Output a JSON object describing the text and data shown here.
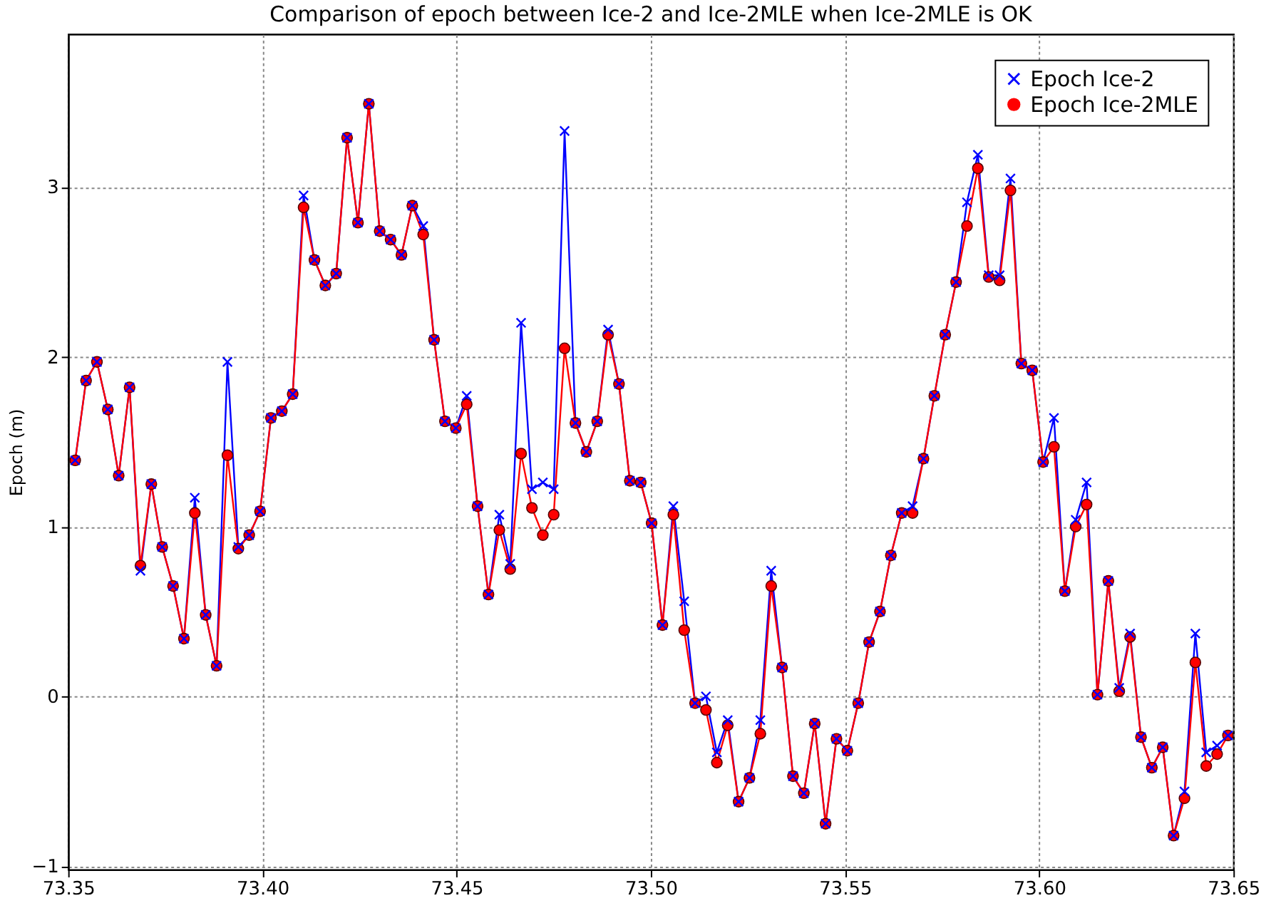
{
  "chart_data": {
    "type": "line",
    "title": "Comparison of epoch between Ice-2 and Ice-2MLE when Ice-2MLE is OK",
    "ylabel": "Epoch (m)",
    "x": [
      73.3518,
      73.3546,
      73.3574,
      73.3602,
      73.363,
      73.3658,
      73.3686,
      73.3714,
      73.3742,
      73.377,
      73.3798,
      73.3826,
      73.3854,
      73.3882,
      73.391,
      73.3938,
      73.3966,
      73.3994,
      73.4022,
      73.405,
      73.4078,
      73.4106,
      73.4134,
      73.4162,
      73.419,
      73.4218,
      73.4246,
      73.4274,
      73.4302,
      73.433,
      73.4358,
      73.4386,
      73.4414,
      73.4442,
      73.447,
      73.4498,
      73.4526,
      73.4554,
      73.4582,
      73.461,
      73.4638,
      73.4666,
      73.4694,
      73.4722,
      73.475,
      73.4778,
      73.4806,
      73.4834,
      73.4862,
      73.489,
      73.4918,
      73.4946,
      73.4974,
      73.5002,
      73.503,
      73.5058,
      73.5086,
      73.5114,
      73.5142,
      73.517,
      73.5198,
      73.5226,
      73.5254,
      73.5282,
      73.531,
      73.5338,
      73.5366,
      73.5394,
      73.5422,
      73.545,
      73.5478,
      73.5506,
      73.5534,
      73.5562,
      73.559,
      73.5618,
      73.5646,
      73.5674,
      73.5702,
      73.573,
      73.5758,
      73.5786,
      73.5814,
      73.5842,
      73.587,
      73.5898,
      73.5926,
      73.5954,
      73.5982,
      73.601,
      73.6038,
      73.6066,
      73.6094,
      73.6122,
      73.615,
      73.6178,
      73.6206,
      73.6234,
      73.6262,
      73.629,
      73.6318,
      73.6346,
      73.6374,
      73.6402,
      73.643,
      73.6458,
      73.6486
    ],
    "series": [
      {
        "name": "Epoch Ice-2",
        "color": "#0000ff",
        "marker": "cross",
        "values": [
          1.39,
          1.86,
          1.97,
          1.69,
          1.3,
          1.82,
          0.74,
          1.25,
          0.88,
          0.65,
          0.34,
          1.17,
          0.48,
          0.18,
          1.97,
          0.88,
          0.95,
          1.09,
          1.64,
          1.68,
          1.78,
          2.95,
          2.57,
          2.42,
          2.49,
          3.29,
          2.79,
          3.49,
          2.74,
          2.69,
          2.6,
          2.89,
          2.77,
          2.1,
          1.62,
          1.58,
          1.77,
          1.12,
          0.6,
          1.07,
          0.78,
          2.2,
          1.22,
          1.26,
          1.22,
          3.33,
          1.61,
          1.44,
          1.62,
          2.16,
          1.84,
          1.27,
          1.26,
          1.02,
          0.42,
          1.12,
          0.56,
          -0.04,
          0.0,
          -0.33,
          -0.14,
          -0.62,
          -0.48,
          -0.14,
          0.74,
          0.17,
          -0.47,
          -0.57,
          -0.16,
          -0.75,
          -0.25,
          -0.32,
          -0.04,
          0.32,
          0.5,
          0.83,
          1.08,
          1.12,
          1.4,
          1.77,
          2.13,
          2.44,
          2.91,
          3.19,
          2.48,
          2.48,
          3.05,
          1.96,
          1.92,
          1.38,
          1.64,
          0.62,
          1.04,
          1.26,
          0.01,
          0.68,
          0.05,
          0.37,
          -0.24,
          -0.42,
          -0.3,
          -0.82,
          -0.56,
          0.37,
          -0.33,
          -0.29,
          -0.23
        ]
      },
      {
        "name": "Epoch Ice-2MLE",
        "color": "#ff0000",
        "marker": "circle",
        "values": [
          1.39,
          1.86,
          1.97,
          1.69,
          1.3,
          1.82,
          0.77,
          1.25,
          0.88,
          0.65,
          0.34,
          1.08,
          0.48,
          0.18,
          1.42,
          0.87,
          0.95,
          1.09,
          1.64,
          1.68,
          1.78,
          2.88,
          2.57,
          2.42,
          2.49,
          3.29,
          2.79,
          3.49,
          2.74,
          2.69,
          2.6,
          2.89,
          2.72,
          2.1,
          1.62,
          1.58,
          1.72,
          1.12,
          0.6,
          0.98,
          0.75,
          1.43,
          1.11,
          0.95,
          1.07,
          2.05,
          1.61,
          1.44,
          1.62,
          2.13,
          1.84,
          1.27,
          1.26,
          1.02,
          0.42,
          1.07,
          0.39,
          -0.04,
          -0.08,
          -0.39,
          -0.17,
          -0.62,
          -0.48,
          -0.22,
          0.65,
          0.17,
          -0.47,
          -0.57,
          -0.16,
          -0.75,
          -0.25,
          -0.32,
          -0.04,
          0.32,
          0.5,
          0.83,
          1.08,
          1.08,
          1.4,
          1.77,
          2.13,
          2.44,
          2.77,
          3.11,
          2.47,
          2.45,
          2.98,
          1.96,
          1.92,
          1.38,
          1.47,
          0.62,
          1.0,
          1.13,
          0.01,
          0.68,
          0.03,
          0.35,
          -0.24,
          -0.42,
          -0.3,
          -0.82,
          -0.6,
          0.2,
          -0.41,
          -0.34,
          -0.23
        ]
      }
    ],
    "xlim": [
      73.35,
      73.65
    ],
    "xticks": [
      73.35,
      {
        "value": 73.4,
        "label": "73.40"
      },
      73.45,
      {
        "value": 73.5,
        "label": "73.50"
      },
      73.55,
      {
        "value": 73.6,
        "label": "73.60"
      },
      73.65
    ],
    "ylim": [
      -1.02,
      3.9
    ],
    "yticks": [
      -1,
      0,
      1,
      2,
      3
    ],
    "grid": true,
    "legend": "top right",
    "line_style": "solid"
  }
}
